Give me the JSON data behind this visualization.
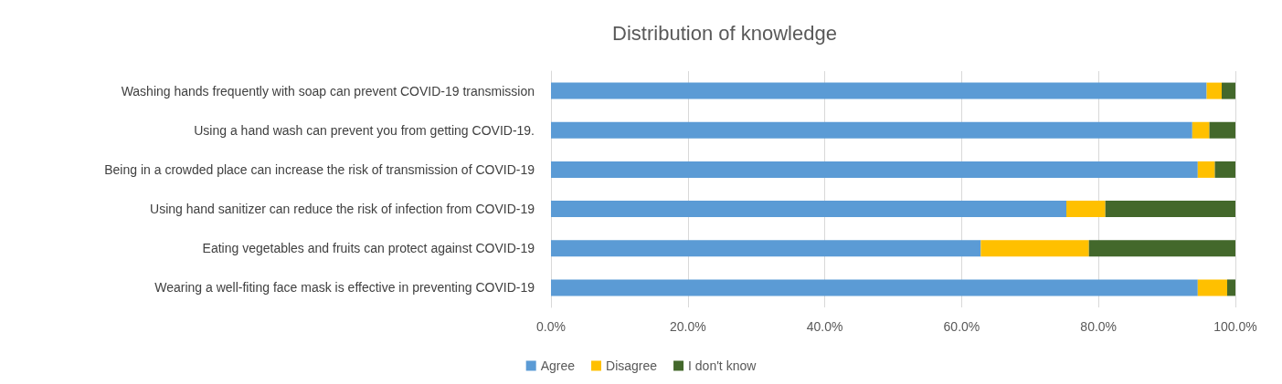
{
  "chart_data": {
    "type": "bar",
    "orientation": "horizontal",
    "stacked": true,
    "title": "Distribution of knowledge",
    "categories": [
      "Washing hands frequently with soap can prevent COVID-19 transmission",
      "Using a hand wash can prevent you from getting COVID-19.",
      "Being in a crowded place can increase the risk of transmission of COVID-19",
      "Using hand sanitizer can reduce the risk of infection from COVID-19",
      "Eating vegetables and fruits can protect against COVID-19",
      "Wearing a well-fiting face mask is effective in preventing COVID-19"
    ],
    "series": [
      {
        "name": "Agree",
        "color": "#5b9bd5",
        "values": [
          95.8,
          93.7,
          94.5,
          75.3,
          62.8,
          94.5
        ]
      },
      {
        "name": "Disagree",
        "color": "#ffc000",
        "values": [
          2.2,
          2.5,
          2.5,
          5.7,
          15.8,
          4.3
        ]
      },
      {
        "name": "I don't know",
        "color": "#43682b",
        "values": [
          2.0,
          3.8,
          3.0,
          19.0,
          21.4,
          1.2
        ]
      }
    ],
    "xlim": [
      0,
      100
    ],
    "xticks": [
      {
        "value": 0,
        "label": "0.0%"
      },
      {
        "value": 20,
        "label": "20.0%"
      },
      {
        "value": 40,
        "label": "40.0%"
      },
      {
        "value": 60,
        "label": "60.0%"
      },
      {
        "value": 80,
        "label": "80.0%"
      },
      {
        "value": 100,
        "label": "100.0%"
      }
    ],
    "grid": "x",
    "legend": "bottom"
  }
}
